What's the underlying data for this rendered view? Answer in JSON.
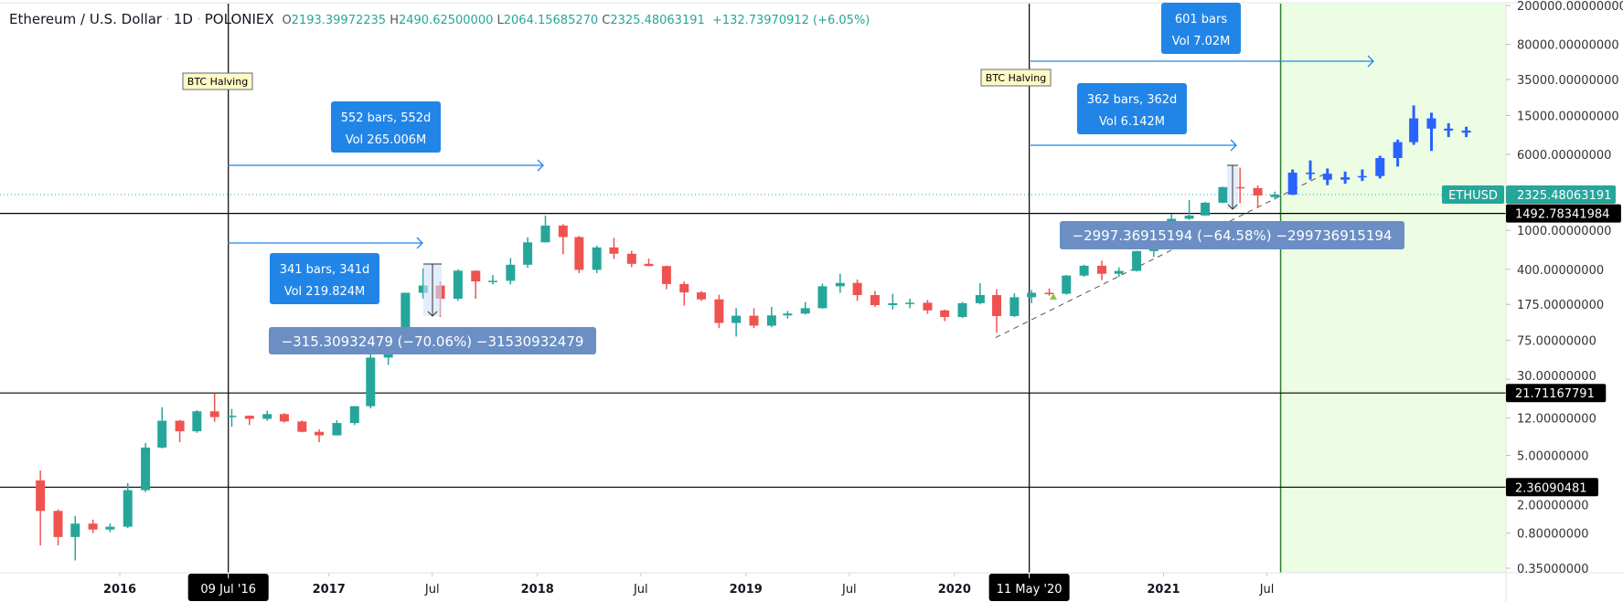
{
  "header": {
    "symbol_name": "Ethereum / U.S. Dollar",
    "interval": "1D",
    "exchange": "POLONIEX",
    "open_label": "O",
    "open": "2193.39972235",
    "high_label": "H",
    "high": "2490.62500000",
    "low_label": "L",
    "low": "2064.15685270",
    "close_label": "C",
    "close": "2325.48063191",
    "change": "+132.73970912 (+6.05%)"
  },
  "colors": {
    "up": "#26a69a",
    "down": "#ef5350",
    "projection": "#2962ff",
    "annotation": "#2185e8",
    "range_label": "#6b8fc4",
    "future_zone": "#ecfde3",
    "future_line": "#2e7d32"
  },
  "price_axis": {
    "scale": "log",
    "ticks": [
      "200000.00000000",
      "80000.00000000",
      "35000.00000000",
      "15000.00000000",
      "6000.00000000",
      "1000.00000000",
      "400.00000000",
      "175.00000000",
      "75.00000000",
      "30.00000000",
      "12.00000000",
      "5.00000000",
      "2.00000000",
      "0.80000000",
      "0.35000000"
    ],
    "tick_values": [
      200000,
      80000,
      35000,
      15000,
      6000,
      1000,
      400,
      175,
      75,
      30,
      12,
      5,
      2,
      0.8,
      0.35
    ],
    "symbol_tag": "ETHUSD",
    "last_price_tag": "2325.48063191",
    "last_price": 2325.48063191,
    "level_tags": [
      {
        "label": "1492.78341984",
        "value": 1492.78341984
      },
      {
        "label": "21.71167791",
        "value": 21.71167791
      },
      {
        "label": "2.36090481",
        "value": 2.36090481
      }
    ]
  },
  "time_axis": {
    "ticks": [
      {
        "label": "2016",
        "date": "2016-01-01",
        "bold": true
      },
      {
        "label": "2017",
        "date": "2017-01-01",
        "bold": true
      },
      {
        "label": "Jul",
        "date": "2017-07-01",
        "bold": false
      },
      {
        "label": "2018",
        "date": "2018-01-01",
        "bold": true
      },
      {
        "label": "Jul",
        "date": "2018-07-01",
        "bold": false
      },
      {
        "label": "2019",
        "date": "2019-01-01",
        "bold": true
      },
      {
        "label": "Jul",
        "date": "2019-07-01",
        "bold": false
      },
      {
        "label": "2020",
        "date": "2020-01-01",
        "bold": true
      },
      {
        "label": "2021",
        "date": "2021-01-01",
        "bold": true
      },
      {
        "label": "Jul",
        "date": "2021-07-01",
        "bold": false
      }
    ],
    "markers": [
      {
        "label": "09 Jul '16",
        "date": "2016-07-09"
      },
      {
        "label": "11 May '20",
        "date": "2020-05-11"
      }
    ]
  },
  "annotations": {
    "halvings": [
      {
        "label": "BTC Halving",
        "date": "2016-07-09"
      },
      {
        "label": "BTC Halving",
        "date": "2020-05-11"
      }
    ],
    "date_ranges": [
      {
        "line1": "552 bars, 552d",
        "line2": "Vol 265.006M"
      },
      {
        "line1": "341 bars, 341d",
        "line2": "Vol 219.824M"
      },
      {
        "line1": "601 bars",
        "line2": "Vol 7.02M"
      },
      {
        "line1": "362 bars, 362d",
        "line2": "Vol 6.142M"
      }
    ],
    "price_ranges": [
      {
        "label": "−315.30932479 (−70.06%) −31530932479"
      },
      {
        "label": "−2997.36915194 (−64.58%) −299736915194"
      }
    ],
    "projection_start": "2021-07-25"
  },
  "chart_data": {
    "type": "candlestick",
    "title": "Ethereum / U.S. Dollar",
    "y_scale": "log",
    "ylim": [
      0.35,
      200000
    ],
    "xlim": [
      "2015-08-01",
      "2022-12-31"
    ],
    "grid": false,
    "series": [
      {
        "kind": "history",
        "note_fields": [
          "month",
          "open",
          "high",
          "low",
          "close"
        ],
        "values": [
          [
            "2015-08",
            2.77,
            3.5,
            0.6,
            1.35
          ],
          [
            "2015-09",
            1.35,
            1.4,
            0.6,
            0.73
          ],
          [
            "2015-10",
            0.73,
            1.2,
            0.42,
            1.0
          ],
          [
            "2015-11",
            1.0,
            1.1,
            0.8,
            0.87
          ],
          [
            "2015-12",
            0.87,
            1.0,
            0.82,
            0.93
          ],
          [
            "2016-01",
            0.93,
            2.6,
            0.9,
            2.2
          ],
          [
            "2016-02",
            2.2,
            6.7,
            2.1,
            6.0
          ],
          [
            "2016-03",
            6.0,
            15.5,
            5.9,
            11.3
          ],
          [
            "2016-04",
            11.3,
            11.5,
            6.8,
            8.8
          ],
          [
            "2016-05",
            8.8,
            14.5,
            8.5,
            14.1
          ],
          [
            "2016-06",
            14.1,
            21.5,
            11.0,
            12.3
          ],
          [
            "2016-07",
            12.3,
            14.9,
            9.8,
            12.7
          ],
          [
            "2016-08",
            12.7,
            12.8,
            10.2,
            11.8
          ],
          [
            "2016-09",
            11.8,
            14.3,
            11.3,
            13.2
          ],
          [
            "2016-10",
            13.2,
            13.5,
            10.8,
            11.1
          ],
          [
            "2016-11",
            11.1,
            11.4,
            8.6,
            8.7
          ],
          [
            "2016-12",
            8.7,
            9.2,
            6.8,
            8.0
          ],
          [
            "2017-01",
            8.0,
            11.4,
            8.0,
            10.7
          ],
          [
            "2017-02",
            10.7,
            16.0,
            10.2,
            15.9
          ],
          [
            "2017-03",
            15.9,
            55,
            15.1,
            50
          ],
          [
            "2017-04",
            50,
            80,
            42,
            79
          ],
          [
            "2017-05",
            79,
            230,
            77,
            230
          ],
          [
            "2017-06",
            230,
            410,
            200,
            273
          ],
          [
            "2017-07",
            273,
            300,
            130,
            200
          ],
          [
            "2017-08",
            200,
            400,
            190,
            387
          ],
          [
            "2017-09",
            387,
            390,
            200,
            301
          ],
          [
            "2017-10",
            301,
            350,
            280,
            305
          ],
          [
            "2017-11",
            305,
            520,
            280,
            445
          ],
          [
            "2017-12",
            445,
            850,
            415,
            755
          ],
          [
            "2018-01",
            755,
            1420,
            750,
            1120
          ],
          [
            "2018-02",
            1120,
            1160,
            570,
            855
          ],
          [
            "2018-03",
            855,
            880,
            365,
            395
          ],
          [
            "2018-04",
            395,
            700,
            365,
            670
          ],
          [
            "2018-05",
            670,
            840,
            510,
            577
          ],
          [
            "2018-06",
            577,
            620,
            420,
            455
          ],
          [
            "2018-07",
            455,
            515,
            430,
            432
          ],
          [
            "2018-08",
            432,
            437,
            250,
            283
          ],
          [
            "2018-09",
            283,
            300,
            170,
            232
          ],
          [
            "2018-10",
            232,
            240,
            190,
            197
          ],
          [
            "2018-11",
            197,
            220,
            100,
            113
          ],
          [
            "2018-12",
            113,
            160,
            82,
            134
          ],
          [
            "2019-01",
            134,
            160,
            100,
            106
          ],
          [
            "2019-02",
            106,
            165,
            102,
            135
          ],
          [
            "2019-03",
            135,
            150,
            125,
            141
          ],
          [
            "2019-04",
            141,
            185,
            138,
            160
          ],
          [
            "2019-05",
            160,
            285,
            158,
            268
          ],
          [
            "2019-06",
            268,
            360,
            230,
            290
          ],
          [
            "2019-07",
            290,
            315,
            190,
            218
          ],
          [
            "2019-08",
            218,
            240,
            165,
            172
          ],
          [
            "2019-09",
            172,
            225,
            155,
            180
          ],
          [
            "2019-10",
            180,
            200,
            160,
            182
          ],
          [
            "2019-11",
            182,
            195,
            140,
            152
          ],
          [
            "2019-12",
            152,
            155,
            118,
            130
          ],
          [
            "2020-01",
            130,
            185,
            127,
            180
          ],
          [
            "2020-02",
            180,
            288,
            175,
            218
          ],
          [
            "2020-03",
            218,
            250,
            90,
            133
          ],
          [
            "2020-04",
            133,
            228,
            130,
            207
          ],
          [
            "2020-05",
            207,
            245,
            180,
            230
          ],
          [
            "2020-06",
            230,
            255,
            215,
            225
          ],
          [
            "2020-07",
            225,
            350,
            220,
            345
          ],
          [
            "2020-08",
            345,
            445,
            335,
            435
          ],
          [
            "2020-09",
            435,
            490,
            310,
            360
          ],
          [
            "2020-10",
            360,
            420,
            335,
            385
          ],
          [
            "2020-11",
            385,
            620,
            380,
            615
          ],
          [
            "2020-12",
            615,
            755,
            535,
            738
          ],
          [
            "2021-01",
            738,
            1470,
            715,
            1315
          ],
          [
            "2021-02",
            1315,
            2040,
            1280,
            1420
          ],
          [
            "2021-03",
            1420,
            1950,
            1420,
            1920
          ],
          [
            "2021-04",
            1920,
            2800,
            1900,
            2775
          ],
          [
            "2021-05",
            2775,
            4380,
            1900,
            2710
          ],
          [
            "2021-06",
            2710,
            2890,
            1700,
            2275
          ],
          [
            "2021-07",
            2193.4,
            2490.6,
            2064.2,
            2325.5
          ]
        ]
      },
      {
        "kind": "projection",
        "values": [
          [
            "2021-08",
            2325,
            4200,
            2300,
            3900
          ],
          [
            "2021-09",
            3900,
            5200,
            3300,
            3800
          ],
          [
            "2021-10",
            3800,
            4300,
            2900,
            3300
          ],
          [
            "2021-11",
            3300,
            4000,
            3000,
            3500
          ],
          [
            "2021-12",
            3500,
            4200,
            3200,
            3600
          ],
          [
            "2022-01",
            3600,
            5800,
            3400,
            5500
          ],
          [
            "2022-02",
            5500,
            8500,
            4500,
            8000
          ],
          [
            "2022-03",
            8000,
            19000,
            7500,
            14000
          ],
          [
            "2022-04",
            14000,
            16000,
            6500,
            11000
          ],
          [
            "2022-05",
            11000,
            12500,
            9000,
            10500
          ],
          [
            "2022-06",
            10500,
            11500,
            9000,
            10000
          ]
        ]
      }
    ],
    "trendline": [
      [
        "2020-03-13",
        80
      ],
      [
        "2021-10-15",
        3900
      ]
    ]
  }
}
